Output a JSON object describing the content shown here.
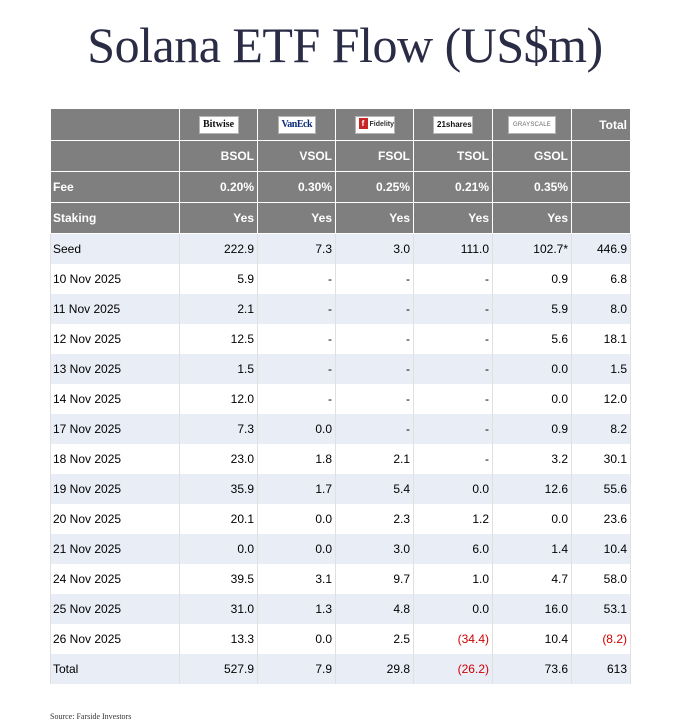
{
  "title": "Solana ETF Flow (US$m)",
  "issuers": [
    {
      "logo_text": "Bitwise",
      "ticker": "BSOL",
      "fee": "0.20%",
      "staking": "Yes"
    },
    {
      "logo_text": "VanEck",
      "ticker": "VSOL",
      "fee": "0.30%",
      "staking": "Yes"
    },
    {
      "logo_text": "Fidelity",
      "ticker": "FSOL",
      "fee": "0.25%",
      "staking": "Yes"
    },
    {
      "logo_text": "21shares",
      "ticker": "TSOL",
      "fee": "0.21%",
      "staking": "Yes"
    },
    {
      "logo_text": "GRAYSCALE",
      "ticker": "GSOL",
      "fee": "0.35%",
      "staking": "Yes"
    }
  ],
  "header": {
    "total_label": "Total",
    "fee_label": "Fee",
    "staking_label": "Staking"
  },
  "rows": [
    {
      "label": "Seed",
      "values": [
        "222.9",
        "7.3",
        "3.0",
        "111.0",
        "102.7*"
      ],
      "total": "446.9"
    },
    {
      "label": "10 Nov 2025",
      "values": [
        "5.9",
        "-",
        "-",
        "-",
        "0.9"
      ],
      "total": "6.8"
    },
    {
      "label": "11 Nov 2025",
      "values": [
        "2.1",
        "-",
        "-",
        "-",
        "5.9"
      ],
      "total": "8.0"
    },
    {
      "label": "12 Nov 2025",
      "values": [
        "12.5",
        "-",
        "-",
        "-",
        "5.6"
      ],
      "total": "18.1"
    },
    {
      "label": "13 Nov 2025",
      "values": [
        "1.5",
        "-",
        "-",
        "-",
        "0.0"
      ],
      "total": "1.5"
    },
    {
      "label": "14 Nov 2025",
      "values": [
        "12.0",
        "-",
        "-",
        "-",
        "0.0"
      ],
      "total": "12.0"
    },
    {
      "label": "17 Nov 2025",
      "values": [
        "7.3",
        "0.0",
        "-",
        "-",
        "0.9"
      ],
      "total": "8.2"
    },
    {
      "label": "18 Nov 2025",
      "values": [
        "23.0",
        "1.8",
        "2.1",
        "-",
        "3.2"
      ],
      "total": "30.1"
    },
    {
      "label": "19 Nov 2025",
      "values": [
        "35.9",
        "1.7",
        "5.4",
        "0.0",
        "12.6"
      ],
      "total": "55.6"
    },
    {
      "label": "20 Nov 2025",
      "values": [
        "20.1",
        "0.0",
        "2.3",
        "1.2",
        "0.0"
      ],
      "total": "23.6"
    },
    {
      "label": "21 Nov 2025",
      "values": [
        "0.0",
        "0.0",
        "3.0",
        "6.0",
        "1.4"
      ],
      "total": "10.4"
    },
    {
      "label": "24 Nov 2025",
      "values": [
        "39.5",
        "3.1",
        "9.7",
        "1.0",
        "4.7"
      ],
      "total": "58.0"
    },
    {
      "label": "25 Nov 2025",
      "values": [
        "31.0",
        "1.3",
        "4.8",
        "0.0",
        "16.0"
      ],
      "total": "53.1"
    },
    {
      "label": "26 Nov 2025",
      "values": [
        "13.3",
        "0.0",
        "2.5",
        "(34.4)",
        "10.4"
      ],
      "total": "(8.2)"
    }
  ],
  "totals": {
    "label": "Total",
    "values": [
      "527.9",
      "7.9",
      "29.8",
      "(26.2)",
      "73.6"
    ],
    "total": "613"
  },
  "colors": {
    "negative": "#d00000",
    "header_bg": "#7f7f7f",
    "row_shade": "#e9edf6",
    "title": "#2a2b45"
  },
  "source": "Source: Farside Investors"
}
